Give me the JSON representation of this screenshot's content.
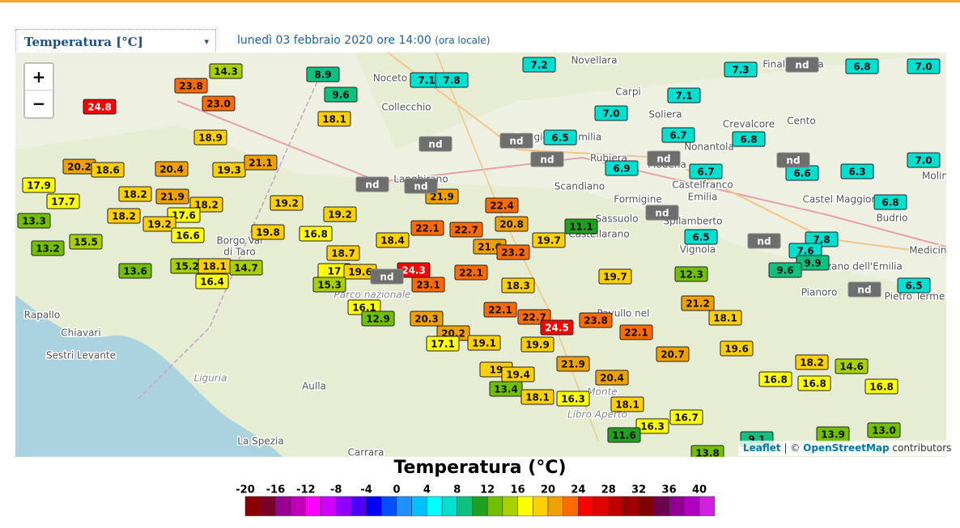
{
  "controls": {
    "variable": "Temperatura [°C]",
    "arrow": "▾",
    "date": "lunedì 03 febbraio 2020 ore 14:00",
    "note": "(ora locale)",
    "zoom_in": "+",
    "zoom_out": "−"
  },
  "attribution": {
    "leaflet": "Leaflet",
    "separator": "| ©",
    "osm": "OpenStreetMap",
    "rest": "contributors"
  },
  "legend": {
    "title": "Temperatura (°C)",
    "ticks": [
      -20,
      -16,
      -12,
      -8,
      -4,
      0,
      4,
      8,
      12,
      16,
      20,
      24,
      28,
      32,
      36,
      40
    ],
    "start": -20,
    "step": 2,
    "colors": [
      "#8b0000",
      "#7a0028",
      "#9a0090",
      "#c000b8",
      "#ff00ff",
      "#d000ff",
      "#9000ff",
      "#5000ff",
      "#0000ff",
      "#0050ff",
      "#1e90ff",
      "#00c0ff",
      "#00ffff",
      "#00e0d0",
      "#10c080",
      "#20a020",
      "#70c000",
      "#a8d000",
      "#ffff00",
      "#ffd000",
      "#f0a000",
      "#ff6a00",
      "#ff0000",
      "#e00000",
      "#c00000",
      "#a00000",
      "#800000",
      "#700050",
      "#900090",
      "#b000c0",
      "#d020e0"
    ]
  },
  "places": [
    "Novellara",
    "Finale Emilia",
    "Noceto",
    "Collecchio",
    "Carpi",
    "Soliera",
    "Crevalcore",
    "Cento",
    "Reggio nell'Emilia",
    "Rubiera",
    "Modena",
    "Nonantola",
    "Castelfranco",
    "Emilia",
    "Castel Maggiore",
    "Langhirano",
    "Scandiano",
    "Formigine",
    "Sassuolo",
    "Spilamberto",
    "Budrio",
    "Castellarano",
    "Vignola",
    "Borgo Val",
    "di Taro",
    "Ozzano dell'Emilia",
    "Medicina",
    "Pianoro",
    "Pietro Terme",
    "Rapallo",
    "Chiavari",
    "Sestri Levante",
    "Parco nazionale",
    "Pavullo nel",
    "Liguria",
    "Aulla",
    "La Spezia",
    "Carrara",
    "Monte",
    "Libro Aperto",
    "Molin"
  ],
  "stations": [
    "14.3",
    "23.8",
    "23.0",
    "24.8",
    "8.9",
    "9.6",
    "18.1",
    "7.1",
    "7.8",
    "7.2",
    "7.3",
    "6.8",
    "7.0",
    "7.1",
    "7.0",
    "6.5",
    "6.7",
    "6.8",
    "18.9",
    "20.2",
    "18.6",
    "20.4",
    "19.3",
    "21.1",
    "6.9",
    "6.7",
    "6.6",
    "6.3",
    "7.0",
    "17.9",
    "17.7",
    "18.2",
    "21.9",
    "18.2",
    "19.2",
    "21.9",
    "22.4",
    "19.2",
    "6.8",
    "13.3",
    "18.2",
    "17.6",
    "19.2",
    "22.1",
    "22.7",
    "20.8",
    "11.1",
    "16.6",
    "19.8",
    "16.8",
    "18.4",
    "19.7",
    "21.6",
    "23.2",
    "6.5",
    "7.8",
    "15.5",
    "13.2",
    "18.7",
    "7.6",
    "9.9",
    "15.2",
    "18.1",
    "14.7",
    "13.6",
    "17",
    "19.6",
    "24.3",
    "22.1",
    "9.6",
    "15.3",
    "16.4",
    "23.1",
    "18.3",
    "19.7",
    "12.3",
    "6.5",
    "16.1",
    "21.2",
    "22.1",
    "12.9",
    "20.3",
    "22.7",
    "23.8",
    "24.5",
    "18.1",
    "20.2",
    "22.1",
    "17.1",
    "19.1",
    "19.9",
    "19.6",
    "20.7",
    "18.2",
    "14.6",
    "21.9",
    "19",
    "19.4",
    "20.4",
    "16.8",
    "16.8",
    "16.8",
    "13.4",
    "18.1",
    "16.3",
    "18.1",
    "16.7",
    "16.3",
    "13.9",
    "13.0",
    "11.6",
    "13.8",
    "9.1",
    "nd",
    "nd",
    "nd",
    "nd",
    "nd",
    "nd",
    "nd",
    "nd",
    "nd",
    "nd",
    "nd",
    "nd"
  ]
}
